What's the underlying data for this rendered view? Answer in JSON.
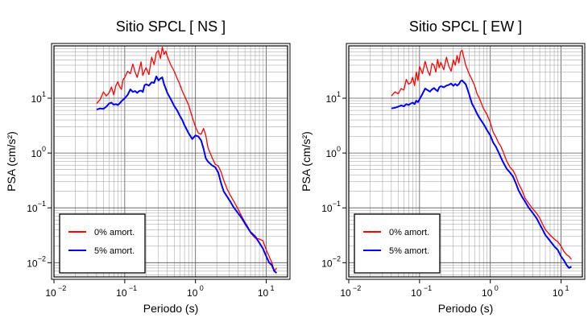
{
  "chart_data": [
    {
      "type": "line",
      "title": "Sitio SPCL [ NS ]",
      "xlabel": "Periodo (s)",
      "ylabel": "PSA (cm/s²)",
      "xscale": "log",
      "yscale": "log",
      "xlim": [
        0.01,
        20
      ],
      "ylim": [
        0.0055,
        90
      ],
      "grid": true,
      "legend_position": "bottom-left",
      "xticks": [
        {
          "v": 0.01,
          "base": "10",
          "exp": "−2"
        },
        {
          "v": 0.1,
          "base": "10",
          "exp": "−1"
        },
        {
          "v": 1,
          "base": "10",
          "exp": "0"
        },
        {
          "v": 10,
          "base": "10",
          "exp": "1"
        }
      ],
      "yticks": [
        {
          "v": 0.01,
          "base": "10",
          "exp": "−2"
        },
        {
          "v": 0.1,
          "base": "10",
          "exp": "−1"
        },
        {
          "v": 1,
          "base": "10",
          "exp": "0"
        },
        {
          "v": 10,
          "base": "10",
          "exp": "1"
        }
      ],
      "series": [
        {
          "name": "0% amort.",
          "color": "#ff0000",
          "x": [
            0.04,
            0.045,
            0.05,
            0.055,
            0.06,
            0.065,
            0.07,
            0.075,
            0.08,
            0.085,
            0.09,
            0.095,
            0.1,
            0.11,
            0.12,
            0.13,
            0.14,
            0.15,
            0.16,
            0.17,
            0.18,
            0.19,
            0.2,
            0.22,
            0.24,
            0.26,
            0.28,
            0.3,
            0.32,
            0.34,
            0.36,
            0.38,
            0.4,
            0.45,
            0.5,
            0.55,
            0.6,
            0.65,
            0.7,
            0.8,
            0.9,
            1.0,
            1.1,
            1.2,
            1.3,
            1.4,
            1.5,
            1.7,
            1.9,
            2.1,
            2.3,
            2.5,
            2.8,
            3.1,
            3.5,
            4,
            4.5,
            5,
            5.5,
            6,
            7,
            8,
            9,
            10,
            11,
            12,
            13,
            14
          ],
          "y": [
            8,
            9.5,
            13,
            11,
            12.5,
            16,
            11.5,
            17,
            20,
            16,
            14.5,
            22,
            24,
            31,
            28,
            42,
            30,
            24,
            33,
            46,
            26,
            31,
            36,
            27,
            56,
            41,
            67,
            74,
            53,
            85,
            63,
            72,
            58,
            40,
            31,
            23,
            18,
            13.5,
            11,
            7.5,
            4.5,
            3,
            2.3,
            2.2,
            2.8,
            2.1,
            1.25,
            0.85,
            0.62,
            0.58,
            0.45,
            0.32,
            0.22,
            0.17,
            0.13,
            0.095,
            0.07,
            0.055,
            0.045,
            0.035,
            0.028,
            0.027,
            0.025,
            0.017,
            0.013,
            0.01,
            0.007,
            0.008
          ]
        },
        {
          "name": "5% amort.",
          "color": "#0000ff",
          "x": [
            0.04,
            0.045,
            0.05,
            0.055,
            0.06,
            0.065,
            0.07,
            0.075,
            0.08,
            0.085,
            0.09,
            0.095,
            0.1,
            0.11,
            0.12,
            0.13,
            0.14,
            0.15,
            0.16,
            0.17,
            0.18,
            0.19,
            0.2,
            0.22,
            0.24,
            0.26,
            0.28,
            0.3,
            0.32,
            0.34,
            0.36,
            0.38,
            0.4,
            0.45,
            0.5,
            0.55,
            0.6,
            0.65,
            0.7,
            0.8,
            0.9,
            1.0,
            1.1,
            1.2,
            1.3,
            1.4,
            1.5,
            1.7,
            1.9,
            2.1,
            2.3,
            2.5,
            2.8,
            3.1,
            3.5,
            4,
            4.5,
            5,
            5.5,
            6,
            7,
            8,
            9,
            10,
            11,
            12,
            13,
            14
          ],
          "y": [
            6.2,
            6.5,
            6.4,
            7,
            8,
            8.3,
            7.6,
            7.8,
            7.5,
            8.1,
            8.8,
            9.4,
            10,
            11.5,
            14.5,
            13,
            13.5,
            12.5,
            13.5,
            13.8,
            13,
            17,
            18,
            17,
            19.5,
            19,
            25,
            21,
            23,
            24,
            18,
            15,
            12.5,
            9.5,
            7.2,
            6,
            4.8,
            4,
            3.2,
            2.3,
            1.8,
            2.1,
            2.0,
            1.7,
            1.2,
            0.8,
            0.7,
            0.6,
            0.55,
            0.44,
            0.28,
            0.2,
            0.16,
            0.13,
            0.1,
            0.08,
            0.065,
            0.052,
            0.043,
            0.036,
            0.03,
            0.023,
            0.018,
            0.013,
            0.01,
            0.009,
            0.007,
            0.0065
          ]
        }
      ]
    },
    {
      "type": "line",
      "title": "Sitio SPCL [ EW ]",
      "xlabel": "Periodo (s)",
      "ylabel": "PSA (cm/s²)",
      "xscale": "log",
      "yscale": "log",
      "xlim": [
        0.01,
        20
      ],
      "ylim": [
        0.0055,
        90
      ],
      "grid": true,
      "legend_position": "bottom-left",
      "xticks": [
        {
          "v": 0.01,
          "base": "10",
          "exp": "−2"
        },
        {
          "v": 0.1,
          "base": "10",
          "exp": "−1"
        },
        {
          "v": 1,
          "base": "10",
          "exp": "0"
        },
        {
          "v": 10,
          "base": "10",
          "exp": "1"
        }
      ],
      "yticks": [
        {
          "v": 0.01,
          "base": "10",
          "exp": "−2"
        },
        {
          "v": 0.1,
          "base": "10",
          "exp": "−1"
        },
        {
          "v": 1,
          "base": "10",
          "exp": "0"
        },
        {
          "v": 10,
          "base": "10",
          "exp": "1"
        }
      ],
      "series": [
        {
          "name": "0% amort.",
          "color": "#ff0000",
          "x": [
            0.04,
            0.045,
            0.05,
            0.055,
            0.06,
            0.065,
            0.07,
            0.075,
            0.08,
            0.085,
            0.09,
            0.095,
            0.1,
            0.11,
            0.12,
            0.13,
            0.14,
            0.15,
            0.16,
            0.17,
            0.18,
            0.19,
            0.2,
            0.22,
            0.24,
            0.26,
            0.28,
            0.3,
            0.32,
            0.34,
            0.36,
            0.38,
            0.4,
            0.45,
            0.5,
            0.55,
            0.6,
            0.65,
            0.7,
            0.8,
            0.9,
            1.0,
            1.1,
            1.2,
            1.3,
            1.4,
            1.5,
            1.7,
            1.9,
            2.1,
            2.3,
            2.5,
            2.8,
            3.1,
            3.5,
            4,
            4.5,
            5,
            5.5,
            6,
            7,
            8,
            9,
            10,
            11,
            12,
            13,
            14
          ],
          "y": [
            11,
            13,
            12,
            15,
            14,
            22,
            18,
            19,
            24,
            17,
            30,
            21,
            38,
            28,
            47,
            32,
            26,
            43,
            40,
            30,
            51,
            36,
            45,
            33,
            56,
            38,
            31,
            50,
            40,
            60,
            44,
            70,
            75,
            40,
            28,
            22,
            17,
            12,
            10,
            6.5,
            5,
            3.6,
            2.4,
            1.95,
            1.55,
            1.35,
            1.1,
            0.72,
            0.55,
            0.48,
            0.38,
            0.28,
            0.21,
            0.15,
            0.12,
            0.095,
            0.08,
            0.065,
            0.05,
            0.04,
            0.032,
            0.027,
            0.024,
            0.02,
            0.016,
            0.014,
            0.013,
            0.0115
          ]
        },
        {
          "name": "5% amort.",
          "color": "#0000ff",
          "x": [
            0.04,
            0.045,
            0.05,
            0.055,
            0.06,
            0.065,
            0.07,
            0.075,
            0.08,
            0.085,
            0.09,
            0.095,
            0.1,
            0.11,
            0.12,
            0.13,
            0.14,
            0.15,
            0.16,
            0.17,
            0.18,
            0.19,
            0.2,
            0.22,
            0.24,
            0.26,
            0.28,
            0.3,
            0.32,
            0.34,
            0.36,
            0.38,
            0.4,
            0.45,
            0.5,
            0.55,
            0.6,
            0.65,
            0.7,
            0.8,
            0.9,
            1.0,
            1.1,
            1.2,
            1.3,
            1.4,
            1.5,
            1.7,
            1.9,
            2.1,
            2.3,
            2.5,
            2.8,
            3.1,
            3.5,
            4,
            4.5,
            5,
            5.5,
            6,
            7,
            8,
            9,
            10,
            11,
            12,
            13,
            14
          ],
          "y": [
            6.5,
            6.7,
            7,
            7.4,
            7.1,
            7.8,
            7.5,
            8,
            8.3,
            7.8,
            9,
            8.5,
            9.6,
            12,
            15,
            14,
            13.2,
            14.5,
            15.3,
            14.2,
            13.4,
            15.8,
            16.6,
            15.8,
            17,
            17.5,
            18.5,
            16.8,
            18.2,
            17,
            18,
            20.5,
            21,
            18,
            12,
            8,
            6.5,
            5.2,
            4.4,
            3.4,
            2.6,
            2.1,
            1.55,
            1.3,
            1.05,
            0.85,
            0.7,
            0.52,
            0.44,
            0.37,
            0.28,
            0.21,
            0.16,
            0.13,
            0.1,
            0.08,
            0.065,
            0.05,
            0.04,
            0.032,
            0.025,
            0.02,
            0.017,
            0.013,
            0.011,
            0.009,
            0.008,
            0.0085
          ]
        }
      ]
    }
  ]
}
